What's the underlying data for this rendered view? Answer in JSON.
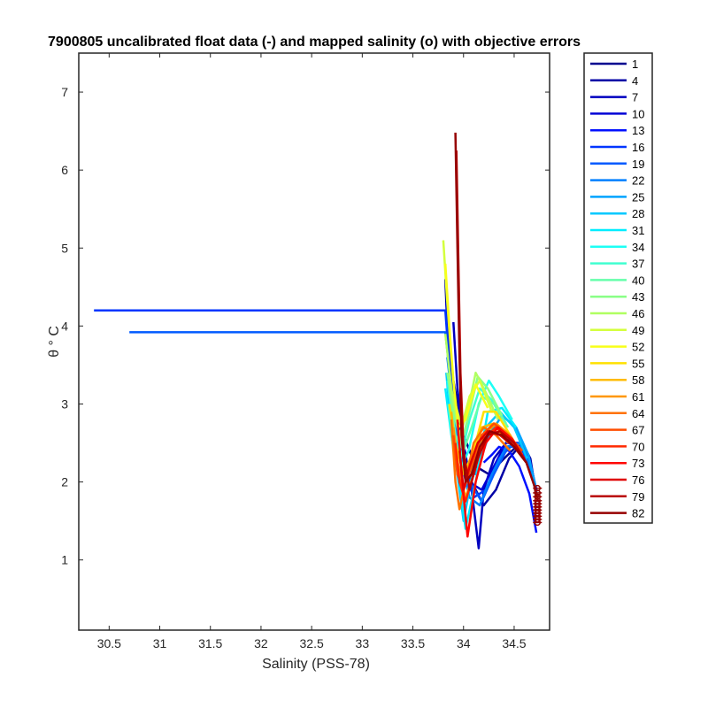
{
  "chart_data": {
    "type": "line",
    "title": "7900805 uncalibrated float data (-) and mapped salinity (o) with objective errors",
    "xlabel": "Salinity (PSS-78)",
    "ylabel": "θ ° C",
    "xlim": [
      30.2,
      34.85
    ],
    "ylim": [
      0.1,
      7.5
    ],
    "xticks": [
      "30.5",
      "31",
      "31.5",
      "32",
      "32.5",
      "33",
      "33.5",
      "34",
      "34.5"
    ],
    "yticks": [
      "1",
      "2",
      "3",
      "4",
      "5",
      "6",
      "7"
    ],
    "grid": false,
    "legend_position": "outside-right",
    "legend": [
      "1",
      "4",
      "7",
      "10",
      "13",
      "16",
      "19",
      "22",
      "25",
      "28",
      "31",
      "34",
      "37",
      "40",
      "43",
      "46",
      "49",
      "52",
      "55",
      "58",
      "61",
      "64",
      "67",
      "70",
      "73",
      "76",
      "79",
      "82"
    ],
    "colors": [
      "#00008f",
      "#0000a6",
      "#0000bf",
      "#0000d6",
      "#0010ff",
      "#0035ff",
      "#005aff",
      "#007fff",
      "#00a3ff",
      "#00c8ff",
      "#00edff",
      "#1cfff5",
      "#40ffd1",
      "#66ffab",
      "#8aff87",
      "#b0ff61",
      "#d4ff3d",
      "#f8ff19",
      "#ffe000",
      "#ffbb00",
      "#ff9700",
      "#ff7200",
      "#ff4e00",
      "#ff2900",
      "#ff0500",
      "#df0000",
      "#ba0000",
      "#960000"
    ],
    "series": [
      {
        "name": "1",
        "x": [
          33.82,
          33.84,
          33.9,
          34.0,
          34.12,
          34.25,
          34.4,
          34.52,
          34.62,
          34.68,
          34.72
        ],
        "y": [
          4.6,
          4.0,
          3.3,
          2.6,
          2.2,
          2.1,
          2.3,
          2.45,
          2.35,
          2.05,
          1.85
        ]
      },
      {
        "name": "4",
        "x": [
          33.85,
          33.9,
          33.98,
          34.08,
          34.2,
          34.32,
          34.45,
          34.58,
          34.66,
          34.71
        ],
        "y": [
          3.8,
          3.2,
          2.5,
          2.0,
          1.7,
          1.9,
          2.3,
          2.5,
          2.3,
          1.9
        ]
      },
      {
        "name": "7",
        "x": [
          33.9,
          33.94,
          34.0,
          34.08,
          34.15,
          34.2,
          34.3,
          34.45,
          34.6,
          34.7
        ],
        "y": [
          4.05,
          3.2,
          2.5,
          1.9,
          1.15,
          1.9,
          2.3,
          2.55,
          2.4,
          2.0
        ]
      },
      {
        "name": "10",
        "x": [
          33.83,
          33.88,
          33.95,
          34.05,
          34.18,
          34.3,
          34.42,
          34.55,
          34.65,
          34.72
        ],
        "y": [
          4.3,
          3.5,
          2.6,
          2.0,
          1.9,
          2.2,
          2.5,
          2.5,
          2.3,
          1.9
        ]
      },
      {
        "name": "13",
        "x": [
          34.72,
          34.65,
          34.55,
          34.45,
          34.35,
          34.28,
          34.2
        ],
        "y": [
          1.35,
          1.85,
          2.2,
          2.4,
          2.45,
          2.35,
          2.25
        ]
      },
      {
        "name": "16",
        "x": [
          30.35,
          33.82,
          33.86,
          33.92,
          34.0,
          34.1,
          34.22,
          34.35,
          34.5,
          34.62,
          34.7
        ],
        "y": [
          4.2,
          4.2,
          3.5,
          2.8,
          2.2,
          1.8,
          1.9,
          2.3,
          2.5,
          2.3,
          1.95
        ]
      },
      {
        "name": "19",
        "x": [
          30.7,
          33.82,
          33.88,
          33.96,
          34.06,
          34.18,
          34.3,
          34.44,
          34.58,
          34.68
        ],
        "y": [
          3.92,
          3.92,
          3.2,
          2.5,
          2.0,
          1.75,
          2.1,
          2.45,
          2.45,
          2.1
        ]
      },
      {
        "name": "22",
        "x": [
          33.84,
          33.9,
          33.97,
          34.06,
          34.16,
          34.28,
          34.42,
          34.56,
          34.67
        ],
        "y": [
          3.6,
          2.9,
          2.3,
          1.8,
          1.7,
          2.1,
          2.45,
          2.5,
          2.15
        ]
      },
      {
        "name": "25",
        "x": [
          33.85,
          33.9,
          34.0,
          34.12,
          34.25,
          34.38,
          34.52,
          34.64,
          34.71
        ],
        "y": [
          3.1,
          2.6,
          2.2,
          2.1,
          2.6,
          2.85,
          2.7,
          2.35,
          1.95
        ]
      },
      {
        "name": "28",
        "x": [
          33.83,
          33.87,
          33.93,
          34.0,
          34.1,
          34.22,
          34.36,
          34.5,
          34.63
        ],
        "y": [
          3.4,
          2.8,
          2.2,
          1.5,
          2.2,
          2.7,
          2.9,
          2.7,
          2.3
        ]
      },
      {
        "name": "31",
        "x": [
          33.82,
          33.88,
          33.96,
          34.02,
          34.12,
          34.24,
          34.38,
          34.52
        ],
        "y": [
          3.2,
          2.6,
          2.0,
          1.4,
          2.0,
          2.9,
          2.95,
          2.7
        ]
      },
      {
        "name": "34",
        "x": [
          33.84,
          33.9,
          33.98,
          34.05,
          34.15,
          34.25,
          34.35,
          34.48
        ],
        "y": [
          3.3,
          2.7,
          2.2,
          2.4,
          3.0,
          3.3,
          3.1,
          2.8
        ]
      },
      {
        "name": "37",
        "x": [
          33.85,
          33.9,
          33.97,
          34.06,
          34.16,
          34.28,
          34.42
        ],
        "y": [
          3.0,
          2.4,
          2.3,
          2.8,
          3.2,
          3.05,
          2.75
        ]
      },
      {
        "name": "40",
        "x": [
          33.86,
          33.92,
          34.0,
          34.08,
          34.18,
          34.3,
          34.44
        ],
        "y": [
          3.2,
          2.6,
          2.4,
          2.7,
          3.1,
          3.0,
          2.7
        ]
      },
      {
        "name": "43",
        "x": [
          33.84,
          33.9,
          33.98,
          34.06,
          34.14,
          34.24,
          34.38
        ],
        "y": [
          3.4,
          2.9,
          2.5,
          2.9,
          3.35,
          3.2,
          2.85
        ]
      },
      {
        "name": "46",
        "x": [
          33.82,
          33.88,
          33.96,
          34.04,
          34.12,
          34.22,
          34.34
        ],
        "y": [
          3.9,
          3.2,
          2.6,
          2.9,
          3.4,
          3.15,
          2.8
        ]
      },
      {
        "name": "49",
        "x": [
          33.8,
          33.84,
          33.88,
          33.92,
          33.98,
          34.06,
          34.16,
          34.28
        ],
        "y": [
          5.1,
          4.3,
          3.6,
          3.0,
          2.7,
          3.1,
          3.3,
          2.9
        ]
      },
      {
        "name": "52",
        "x": [
          33.82,
          33.86,
          33.9,
          33.95,
          34.02,
          34.12,
          34.24
        ],
        "y": [
          4.8,
          4.0,
          3.3,
          2.7,
          2.8,
          3.25,
          2.95
        ]
      },
      {
        "name": "55",
        "x": [
          33.86,
          33.92,
          34.0,
          34.1,
          34.2,
          34.32,
          34.46
        ],
        "y": [
          3.0,
          2.5,
          2.1,
          2.4,
          2.9,
          2.9,
          2.6
        ]
      },
      {
        "name": "58",
        "x": [
          33.88,
          33.93,
          34.0,
          34.08,
          34.18,
          34.3,
          34.44
        ],
        "y": [
          2.9,
          2.3,
          1.9,
          2.2,
          2.7,
          2.75,
          2.5
        ]
      },
      {
        "name": "61",
        "x": [
          33.9,
          33.95,
          34.02,
          34.1,
          34.2,
          34.32,
          34.46,
          34.58
        ],
        "y": [
          2.7,
          2.2,
          1.8,
          2.1,
          2.6,
          2.75,
          2.6,
          2.35
        ]
      },
      {
        "name": "64",
        "x": [
          33.88,
          33.92,
          33.96,
          34.02,
          34.1,
          34.2,
          34.32,
          34.46
        ],
        "y": [
          2.8,
          2.0,
          1.65,
          2.0,
          2.5,
          2.7,
          2.6,
          2.4
        ]
      },
      {
        "name": "67",
        "x": [
          33.9,
          33.94,
          34.0,
          34.08,
          34.18,
          34.3,
          34.44,
          34.58
        ],
        "y": [
          2.6,
          2.1,
          1.9,
          2.2,
          2.6,
          2.75,
          2.6,
          2.4
        ]
      },
      {
        "name": "70",
        "x": [
          33.92,
          33.96,
          34.02,
          34.1,
          34.2,
          34.32,
          34.46,
          34.6
        ],
        "y": [
          2.5,
          2.0,
          1.75,
          2.1,
          2.55,
          2.7,
          2.55,
          2.3
        ]
      },
      {
        "name": "73",
        "x": [
          33.94,
          33.98,
          34.04,
          34.12,
          34.22,
          34.34,
          34.48,
          34.6
        ],
        "y": [
          2.8,
          2.1,
          1.3,
          2.0,
          2.5,
          2.7,
          2.55,
          2.3
        ]
      },
      {
        "name": "76",
        "x": [
          33.96,
          34.0,
          34.06,
          34.14,
          34.24,
          34.36,
          34.5,
          34.62
        ],
        "y": [
          2.4,
          1.9,
          2.2,
          2.5,
          2.65,
          2.6,
          2.45,
          2.25
        ]
      },
      {
        "name": "79",
        "x": [
          33.93,
          33.95,
          33.97,
          34.0,
          34.06,
          34.14,
          34.24,
          34.36,
          34.5,
          34.62
        ],
        "y": [
          6.25,
          4.8,
          3.4,
          2.4,
          1.9,
          2.3,
          2.6,
          2.65,
          2.5,
          2.25
        ]
      },
      {
        "name": "82",
        "x": [
          33.92,
          33.94,
          33.96,
          33.98,
          34.02,
          34.08,
          34.16,
          34.26,
          34.38,
          34.5,
          34.62,
          34.7,
          34.72
        ],
        "y": [
          6.48,
          5.0,
          3.6,
          2.6,
          2.0,
          2.1,
          2.45,
          2.65,
          2.6,
          2.45,
          2.25,
          1.95,
          1.8
        ]
      }
    ],
    "mapped_points": {
      "x": [
        34.73,
        34.73,
        34.73,
        34.73,
        34.73,
        34.73,
        34.73,
        34.73,
        34.73,
        34.73,
        34.73
      ],
      "y": [
        1.92,
        1.86,
        1.81,
        1.76,
        1.72,
        1.68,
        1.64,
        1.6,
        1.56,
        1.52,
        1.48
      ],
      "color": "#960000"
    }
  }
}
